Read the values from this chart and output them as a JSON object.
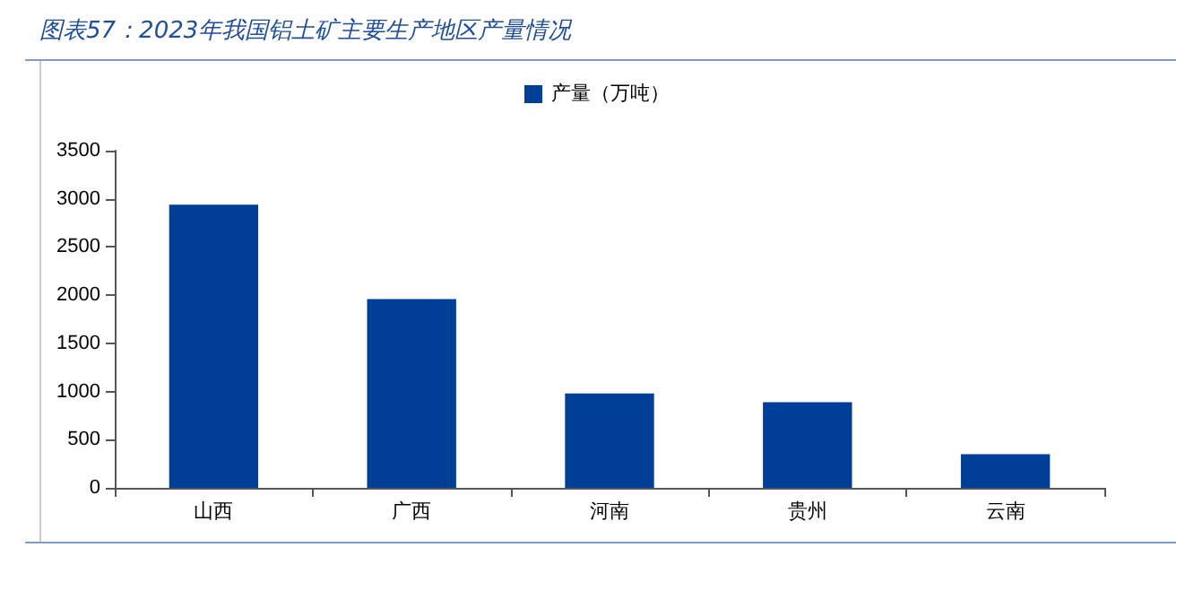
{
  "chart_data": {
    "type": "bar",
    "title": "图表57：2023年我国铝土矿主要生产地区产量情况",
    "categories": [
      "山西",
      "广西",
      "河南",
      "贵州",
      "云南"
    ],
    "series": [
      {
        "name": "产量（万吨）",
        "color": "#003f98",
        "values": [
          2940,
          1960,
          980,
          890,
          350
        ]
      }
    ],
    "ylim": [
      0,
      3500
    ],
    "yticks": [
      0,
      500,
      1000,
      1500,
      2000,
      2500,
      3000,
      3500
    ],
    "grid": false,
    "legend": "top"
  }
}
